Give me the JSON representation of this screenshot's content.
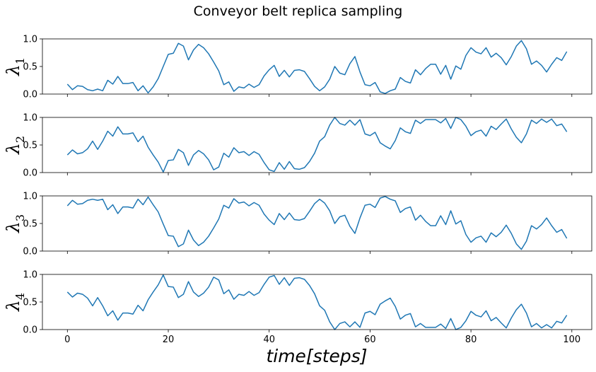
{
  "chart_data": {
    "type": "line",
    "title": "Conveyor belt replica sampling",
    "xlabel": "time[steps]",
    "xlim": [
      -4.95,
      103.95
    ],
    "xticks": [
      0,
      20,
      40,
      60,
      80,
      100
    ],
    "line_color": "#1f77b4",
    "shared_x": true,
    "panels": [
      {
        "ylabel": "λ1",
        "ylabel_base": "λ",
        "ylabel_sub": "1",
        "ylim": [
          0.0,
          1.0
        ],
        "yticks": [
          "0.0",
          "0.5",
          "1.0"
        ],
        "values": [
          0.18,
          0.08,
          0.15,
          0.14,
          0.08,
          0.06,
          0.09,
          0.06,
          0.25,
          0.18,
          0.32,
          0.19,
          0.19,
          0.21,
          0.06,
          0.15,
          0.02,
          0.13,
          0.28,
          0.5,
          0.72,
          0.74,
          0.92,
          0.87,
          0.62,
          0.8,
          0.9,
          0.84,
          0.73,
          0.58,
          0.42,
          0.17,
          0.22,
          0.05,
          0.13,
          0.11,
          0.18,
          0.12,
          0.17,
          0.33,
          0.44,
          0.52,
          0.32,
          0.43,
          0.31,
          0.43,
          0.44,
          0.41,
          0.28,
          0.14,
          0.06,
          0.13,
          0.27,
          0.5,
          0.38,
          0.35,
          0.55,
          0.68,
          0.4,
          0.17,
          0.15,
          0.21,
          0.04,
          0.01,
          0.06,
          0.09,
          0.3,
          0.23,
          0.2,
          0.44,
          0.35,
          0.46,
          0.54,
          0.54,
          0.36,
          0.52,
          0.27,
          0.51,
          0.45,
          0.7,
          0.84,
          0.76,
          0.73,
          0.84,
          0.67,
          0.74,
          0.66,
          0.53,
          0.68,
          0.87,
          0.97,
          0.82,
          0.54,
          0.6,
          0.52,
          0.4,
          0.54,
          0.66,
          0.61,
          0.77
        ]
      },
      {
        "ylabel": "λ2",
        "ylabel_base": "λ",
        "ylabel_sub": "2",
        "ylim": [
          0.0,
          1.0
        ],
        "yticks": [
          "0.0",
          "0.5",
          "1.0"
        ],
        "values": [
          0.32,
          0.41,
          0.34,
          0.36,
          0.43,
          0.57,
          0.42,
          0.57,
          0.75,
          0.66,
          0.83,
          0.7,
          0.7,
          0.72,
          0.56,
          0.66,
          0.46,
          0.32,
          0.19,
          0.01,
          0.22,
          0.23,
          0.42,
          0.36,
          0.13,
          0.32,
          0.4,
          0.34,
          0.23,
          0.05,
          0.1,
          0.35,
          0.28,
          0.45,
          0.36,
          0.38,
          0.31,
          0.38,
          0.33,
          0.18,
          0.05,
          0.02,
          0.18,
          0.06,
          0.2,
          0.07,
          0.06,
          0.09,
          0.2,
          0.35,
          0.57,
          0.65,
          0.86,
          1.0,
          0.89,
          0.86,
          0.95,
          0.86,
          0.96,
          0.7,
          0.67,
          0.73,
          0.54,
          0.48,
          0.43,
          0.58,
          0.81,
          0.74,
          0.71,
          0.95,
          0.89,
          0.96,
          0.96,
          0.96,
          0.9,
          0.98,
          0.8,
          1.0,
          0.96,
          0.84,
          0.67,
          0.74,
          0.77,
          0.66,
          0.84,
          0.78,
          0.88,
          0.97,
          0.79,
          0.64,
          0.54,
          0.7,
          0.95,
          0.89,
          0.97,
          0.91,
          0.97,
          0.85,
          0.88,
          0.74
        ]
      },
      {
        "ylabel": "λ3",
        "ylabel_base": "λ",
        "ylabel_sub": "3",
        "ylim": [
          0.0,
          1.0
        ],
        "yticks": [
          "0.0",
          "0.5",
          "1.0"
        ],
        "values": [
          0.82,
          0.92,
          0.85,
          0.86,
          0.92,
          0.94,
          0.92,
          0.94,
          0.75,
          0.84,
          0.68,
          0.8,
          0.8,
          0.78,
          0.94,
          0.84,
          0.98,
          0.84,
          0.71,
          0.49,
          0.28,
          0.27,
          0.08,
          0.13,
          0.38,
          0.2,
          0.1,
          0.16,
          0.27,
          0.42,
          0.58,
          0.83,
          0.78,
          0.95,
          0.87,
          0.89,
          0.82,
          0.88,
          0.83,
          0.67,
          0.56,
          0.48,
          0.68,
          0.57,
          0.69,
          0.57,
          0.56,
          0.59,
          0.72,
          0.86,
          0.94,
          0.87,
          0.73,
          0.5,
          0.62,
          0.65,
          0.45,
          0.32,
          0.6,
          0.83,
          0.85,
          0.79,
          0.96,
          0.99,
          0.94,
          0.91,
          0.7,
          0.77,
          0.8,
          0.56,
          0.65,
          0.54,
          0.46,
          0.46,
          0.64,
          0.48,
          0.73,
          0.49,
          0.55,
          0.3,
          0.16,
          0.24,
          0.27,
          0.16,
          0.33,
          0.26,
          0.34,
          0.47,
          0.32,
          0.13,
          0.03,
          0.18,
          0.46,
          0.4,
          0.48,
          0.6,
          0.46,
          0.34,
          0.39,
          0.23
        ]
      },
      {
        "ylabel": "λ4",
        "ylabel_base": "λ",
        "ylabel_sub": "4",
        "ylim": [
          0.0,
          1.0
        ],
        "yticks": [
          "0.0",
          "0.5",
          "1.0"
        ],
        "values": [
          0.68,
          0.59,
          0.66,
          0.64,
          0.57,
          0.43,
          0.58,
          0.43,
          0.25,
          0.34,
          0.17,
          0.3,
          0.3,
          0.28,
          0.44,
          0.34,
          0.54,
          0.68,
          0.81,
          0.99,
          0.78,
          0.77,
          0.58,
          0.64,
          0.87,
          0.68,
          0.6,
          0.66,
          0.77,
          0.95,
          0.9,
          0.65,
          0.72,
          0.55,
          0.64,
          0.62,
          0.69,
          0.62,
          0.67,
          0.82,
          0.95,
          0.98,
          0.82,
          0.94,
          0.8,
          0.93,
          0.94,
          0.91,
          0.8,
          0.65,
          0.43,
          0.35,
          0.14,
          0.0,
          0.11,
          0.14,
          0.05,
          0.14,
          0.04,
          0.3,
          0.33,
          0.27,
          0.46,
          0.52,
          0.57,
          0.42,
          0.19,
          0.26,
          0.29,
          0.05,
          0.11,
          0.04,
          0.04,
          0.04,
          0.1,
          0.02,
          0.2,
          0.0,
          0.04,
          0.16,
          0.33,
          0.26,
          0.23,
          0.34,
          0.16,
          0.22,
          0.12,
          0.03,
          0.21,
          0.36,
          0.46,
          0.3,
          0.05,
          0.11,
          0.03,
          0.09,
          0.03,
          0.15,
          0.12,
          0.26
        ]
      }
    ]
  }
}
